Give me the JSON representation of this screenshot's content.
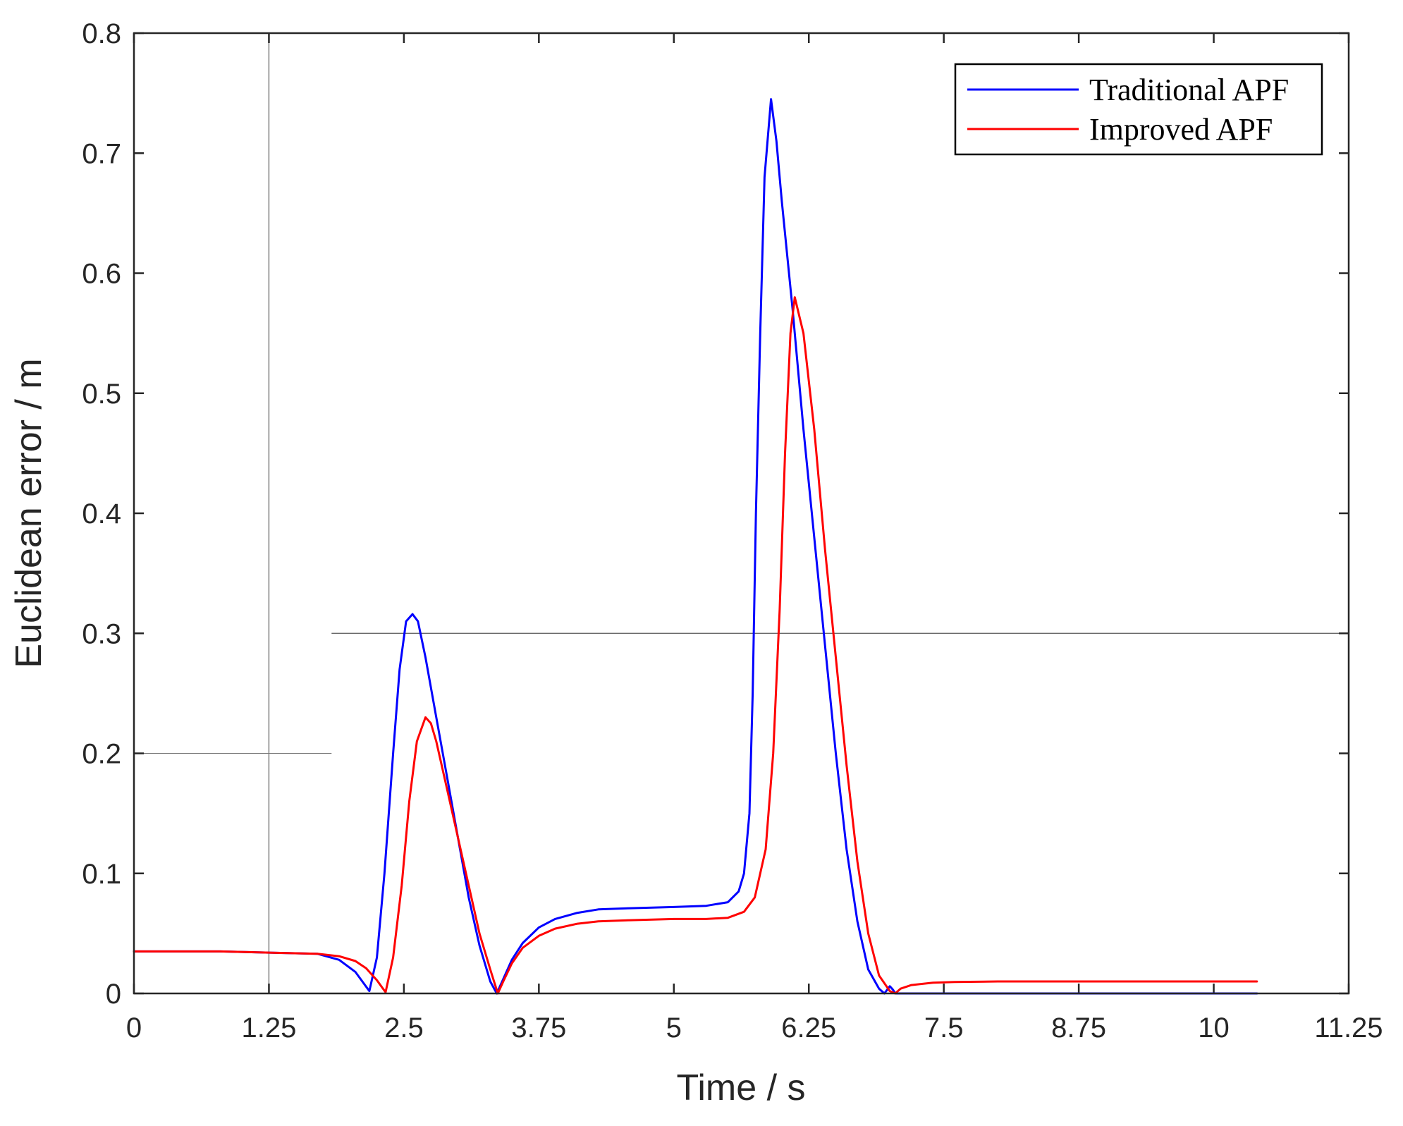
{
  "chart_data": {
    "type": "line",
    "xlabel": "Time / s",
    "ylabel": "Euclidean error / m",
    "xlim": [
      0,
      11.25
    ],
    "ylim": [
      0,
      0.8
    ],
    "xticks": [
      "0",
      "1.25",
      "2.5",
      "3.75",
      "5",
      "6.25",
      "7.5",
      "8.75",
      "10",
      "11.25"
    ],
    "yticks": [
      "0",
      "0.1",
      "0.2",
      "0.3",
      "0.4",
      "0.5",
      "0.6",
      "0.7",
      "0.8"
    ],
    "legend_position": "top-right",
    "series": [
      {
        "name": "Traditional APF",
        "color": "#0000ff",
        "x": [
          0,
          0.8,
          1.25,
          1.7,
          1.9,
          2.05,
          2.18,
          2.25,
          2.32,
          2.4,
          2.46,
          2.52,
          2.58,
          2.63,
          2.7,
          2.8,
          2.9,
          3.0,
          3.1,
          3.2,
          3.3,
          3.36,
          3.42,
          3.5,
          3.6,
          3.75,
          3.9,
          4.1,
          4.3,
          4.6,
          5.0,
          5.3,
          5.5,
          5.6,
          5.65,
          5.7,
          5.73,
          5.76,
          5.8,
          5.84,
          5.9,
          5.95,
          6.0,
          6.1,
          6.2,
          6.3,
          6.4,
          6.5,
          6.6,
          6.7,
          6.8,
          6.9,
          6.95,
          7.0,
          7.03,
          7.05,
          7.2,
          7.5,
          8.0,
          9.0,
          10.0,
          10.4
        ],
        "y": [
          0.035,
          0.035,
          0.034,
          0.033,
          0.028,
          0.018,
          0.002,
          0.03,
          0.1,
          0.2,
          0.27,
          0.31,
          0.316,
          0.31,
          0.28,
          0.23,
          0.18,
          0.13,
          0.08,
          0.04,
          0.01,
          0.0,
          0.012,
          0.028,
          0.042,
          0.055,
          0.062,
          0.067,
          0.07,
          0.071,
          0.072,
          0.073,
          0.076,
          0.085,
          0.1,
          0.15,
          0.25,
          0.4,
          0.55,
          0.68,
          0.745,
          0.71,
          0.66,
          0.57,
          0.47,
          0.38,
          0.29,
          0.2,
          0.12,
          0.06,
          0.02,
          0.004,
          0.0,
          0.006,
          0.003,
          0.0,
          0.0,
          0.0,
          0.0,
          0.0,
          0.0,
          0.0
        ]
      },
      {
        "name": "Improved APF",
        "color": "#ff0000",
        "x": [
          0,
          0.8,
          1.25,
          1.7,
          1.9,
          2.05,
          2.15,
          2.25,
          2.33,
          2.4,
          2.48,
          2.55,
          2.62,
          2.7,
          2.75,
          2.8,
          2.9,
          3.0,
          3.1,
          3.2,
          3.3,
          3.37,
          3.42,
          3.5,
          3.6,
          3.75,
          3.9,
          4.1,
          4.3,
          4.6,
          5.0,
          5.3,
          5.5,
          5.65,
          5.75,
          5.85,
          5.92,
          5.98,
          6.03,
          6.08,
          6.12,
          6.2,
          6.3,
          6.4,
          6.5,
          6.6,
          6.7,
          6.8,
          6.9,
          7.0,
          7.05,
          7.1,
          7.2,
          7.4,
          7.6,
          8.0,
          9.0,
          10.0,
          10.4
        ],
        "y": [
          0.035,
          0.035,
          0.034,
          0.033,
          0.031,
          0.027,
          0.021,
          0.011,
          0.001,
          0.03,
          0.09,
          0.16,
          0.21,
          0.23,
          0.225,
          0.21,
          0.17,
          0.13,
          0.09,
          0.05,
          0.02,
          0.0,
          0.01,
          0.025,
          0.038,
          0.048,
          0.054,
          0.058,
          0.06,
          0.061,
          0.062,
          0.062,
          0.063,
          0.068,
          0.08,
          0.12,
          0.2,
          0.32,
          0.45,
          0.55,
          0.58,
          0.55,
          0.47,
          0.37,
          0.28,
          0.19,
          0.11,
          0.05,
          0.015,
          0.002,
          0.0,
          0.004,
          0.007,
          0.009,
          0.0095,
          0.01,
          0.01,
          0.01,
          0.01
        ]
      }
    ]
  }
}
